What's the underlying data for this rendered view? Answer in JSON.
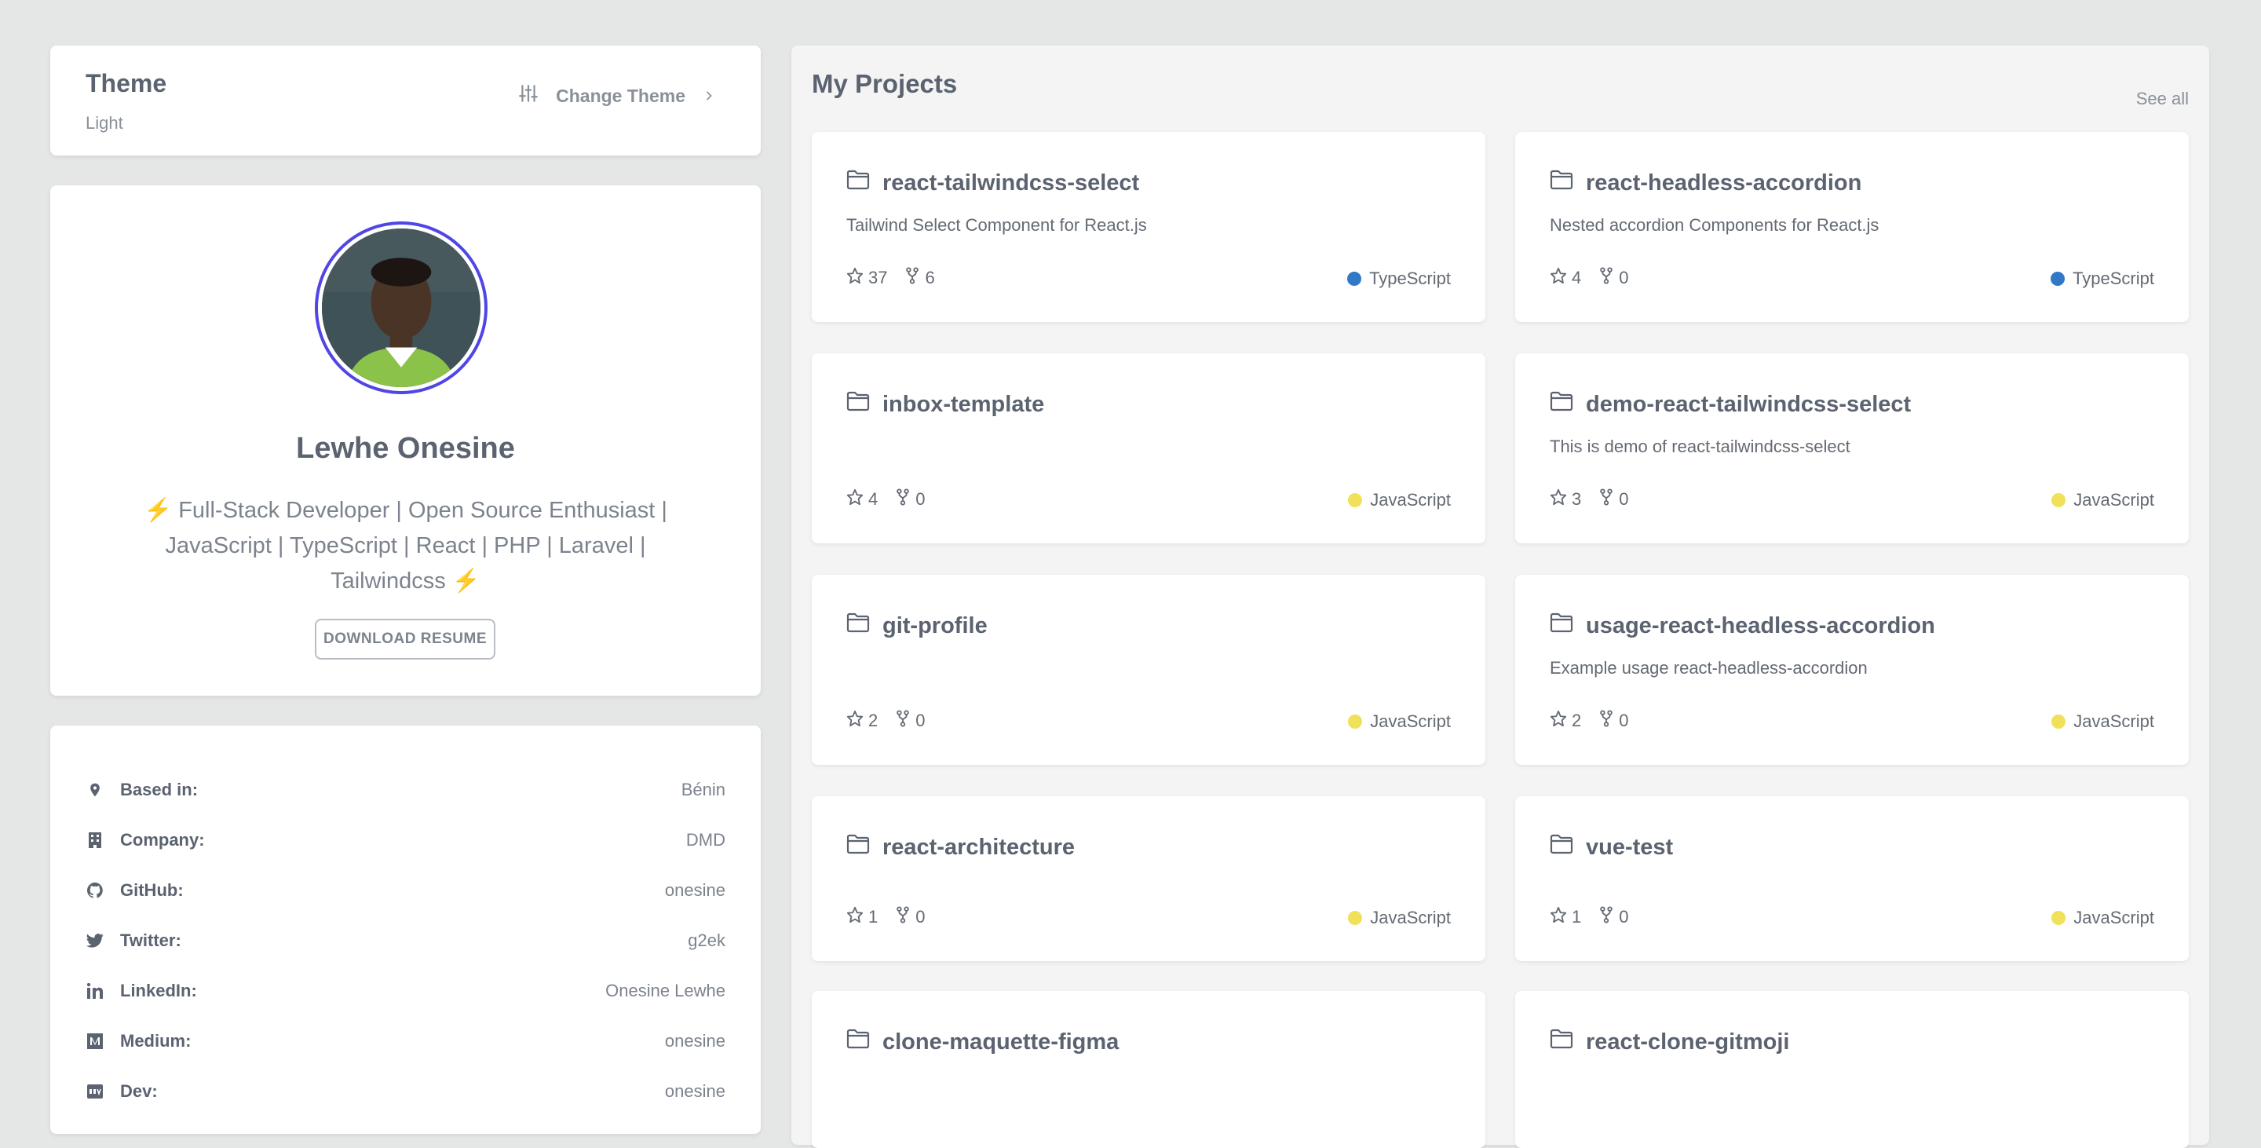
{
  "theme": {
    "title": "Theme",
    "value": "Light",
    "change_label": "Change Theme"
  },
  "profile": {
    "name": "Lewhe Onesine",
    "bio_line1": "⚡ Full-Stack Developer | Open Source Enthusiast |",
    "bio_line2": "JavaScript | TypeScript | React | PHP | Laravel |",
    "bio_line3": "Tailwindcss ⚡",
    "resume_label": "DOWNLOAD RESUME",
    "avatar_ring_color": "#5046e5"
  },
  "info": [
    {
      "icon": "location-pin-icon",
      "label": "Based in:",
      "value": "Bénin"
    },
    {
      "icon": "building-icon",
      "label": "Company:",
      "value": "DMD"
    },
    {
      "icon": "github-icon",
      "label": "GitHub:",
      "value": "onesine"
    },
    {
      "icon": "twitter-icon",
      "label": "Twitter:",
      "value": "g2ek"
    },
    {
      "icon": "linkedin-icon",
      "label": "LinkedIn:",
      "value": "Onesine Lewhe"
    },
    {
      "icon": "medium-icon",
      "label": "Medium:",
      "value": "onesine"
    },
    {
      "icon": "dev-icon",
      "label": "Dev:",
      "value": "onesine"
    }
  ],
  "projects": {
    "title": "My Projects",
    "see_all": "See all",
    "items": [
      {
        "name": "react-tailwindcss-select",
        "description": "Tailwind Select Component for React.js",
        "stars": "37",
        "forks": "6",
        "language": "TypeScript",
        "lang_color": "#3178c6"
      },
      {
        "name": "react-headless-accordion",
        "description": "Nested accordion Components for React.js",
        "stars": "4",
        "forks": "0",
        "language": "TypeScript",
        "lang_color": "#3178c6"
      },
      {
        "name": "inbox-template",
        "description": "",
        "stars": "4",
        "forks": "0",
        "language": "JavaScript",
        "lang_color": "#f1e05a"
      },
      {
        "name": "demo-react-tailwindcss-select",
        "description": "This is demo of react-tailwindcss-select",
        "stars": "3",
        "forks": "0",
        "language": "JavaScript",
        "lang_color": "#f1e05a"
      },
      {
        "name": "git-profile",
        "description": "",
        "stars": "2",
        "forks": "0",
        "language": "JavaScript",
        "lang_color": "#f1e05a"
      },
      {
        "name": "usage-react-headless-accordion",
        "description": "Example usage react-headless-accordion",
        "stars": "2",
        "forks": "0",
        "language": "JavaScript",
        "lang_color": "#f1e05a"
      },
      {
        "name": "react-architecture",
        "description": "",
        "stars": "1",
        "forks": "0",
        "language": "JavaScript",
        "lang_color": "#f1e05a"
      },
      {
        "name": "vue-test",
        "description": "",
        "stars": "1",
        "forks": "0",
        "language": "JavaScript",
        "lang_color": "#f1e05a"
      },
      {
        "name": "clone-maquette-figma",
        "description": "",
        "stars": "",
        "forks": "",
        "language": "",
        "lang_color": "#f1e05a"
      },
      {
        "name": "react-clone-gitmoji",
        "description": "",
        "stars": "",
        "forks": "",
        "language": "",
        "lang_color": "#f1e05a"
      }
    ]
  }
}
